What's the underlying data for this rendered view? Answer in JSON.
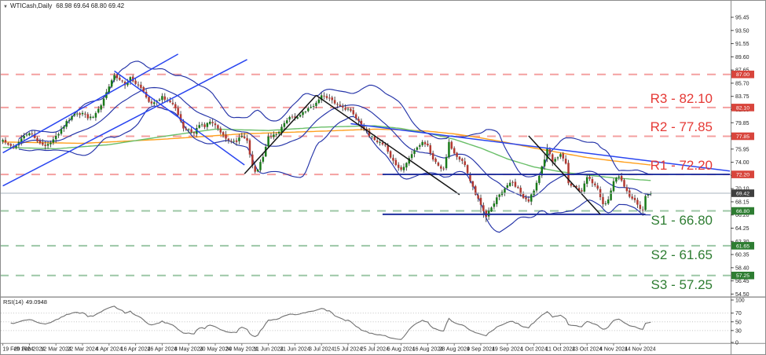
{
  "window": {
    "dropdown_icon": "▼",
    "symbol": "WTICash,Daily",
    "ohlc": "68.98 69.64 68.80 69.42"
  },
  "chart_data": {
    "type": "candlestick",
    "symbol": "WTICash",
    "timeframe": "Daily",
    "bar_count": 245,
    "bars_per_label": 10,
    "time_labels": [
      "19 Feb 2024",
      "29 Feb 2024",
      "12 Mar 2024",
      "22 Mar 2024",
      "4 Apr 2024",
      "16 Apr 2024",
      "26 Apr 2024",
      "8 May 2024",
      "20 May 2024",
      "30 May 2024",
      "11 Jun 2024",
      "21 Jun 2024",
      "3 Jul 2024",
      "15 Jul 2024",
      "25 Jul 2024",
      "6 Aug 2024",
      "16 Aug 2024",
      "28 Aug 2024",
      "9 Sep 2024",
      "19 Sep 2024",
      "1 Oct 2024",
      "11 Oct 2024",
      "23 Oct 2024",
      "4 Nov 2024",
      "14 Nov 2024"
    ],
    "price_axis": {
      "ticks": [
        95.45,
        93.5,
        91.55,
        89.6,
        87.65,
        85.7,
        83.75,
        81.8,
        79.85,
        77.9,
        75.95,
        74.0,
        72.05,
        70.1,
        68.15,
        66.2,
        64.25,
        62.3,
        60.35,
        58.4,
        56.45,
        54.5
      ],
      "top_price": 95.45,
      "tick_step": 1.95
    },
    "close_anchors": [
      [
        0,
        77.3
      ],
      [
        2,
        76.6
      ],
      [
        4,
        76.1
      ],
      [
        6,
        77.0
      ],
      [
        8,
        77.9
      ],
      [
        10,
        78.3
      ],
      [
        12,
        77.6
      ],
      [
        14,
        76.8
      ],
      [
        16,
        76.4
      ],
      [
        18,
        76.9
      ],
      [
        20,
        77.9
      ],
      [
        22,
        78.9
      ],
      [
        24,
        80.1
      ],
      [
        26,
        80.8
      ],
      [
        28,
        81.2
      ],
      [
        30,
        81.3
      ],
      [
        32,
        80.5
      ],
      [
        34,
        80.7
      ],
      [
        36,
        81.9
      ],
      [
        38,
        83.4
      ],
      [
        40,
        85.2
      ],
      [
        42,
        86.9
      ],
      [
        44,
        86.2
      ],
      [
        46,
        85.4
      ],
      [
        48,
        86.6
      ],
      [
        50,
        85.6
      ],
      [
        52,
        85.0
      ],
      [
        54,
        83.6
      ],
      [
        56,
        82.7
      ],
      [
        58,
        83.1
      ],
      [
        60,
        83.8
      ],
      [
        62,
        83.2
      ],
      [
        64,
        82.6
      ],
      [
        66,
        81.0
      ],
      [
        68,
        79.0
      ],
      [
        70,
        78.9
      ],
      [
        72,
        78.3
      ],
      [
        74,
        79.5
      ],
      [
        76,
        79.2
      ],
      [
        78,
        80.0
      ],
      [
        80,
        79.5
      ],
      [
        82,
        78.4
      ],
      [
        84,
        77.5
      ],
      [
        86,
        77.1
      ],
      [
        88,
        77.0
      ],
      [
        90,
        77.9
      ],
      [
        92,
        77.2
      ],
      [
        94,
        73.5
      ],
      [
        95,
        72.6
      ],
      [
        96,
        72.9
      ],
      [
        98,
        74.8
      ],
      [
        100,
        77.8
      ],
      [
        102,
        78.1
      ],
      [
        104,
        78.5
      ],
      [
        106,
        79.8
      ],
      [
        108,
        80.7
      ],
      [
        110,
        80.6
      ],
      [
        112,
        81.0
      ],
      [
        114,
        81.5
      ],
      [
        116,
        82.2
      ],
      [
        118,
        82.8
      ],
      [
        120,
        83.9
      ],
      [
        122,
        83.5
      ],
      [
        124,
        83.2
      ],
      [
        126,
        82.5
      ],
      [
        128,
        82.1
      ],
      [
        130,
        81.9
      ],
      [
        132,
        81.1
      ],
      [
        134,
        80.1
      ],
      [
        136,
        78.9
      ],
      [
        138,
        77.9
      ],
      [
        140,
        77.3
      ],
      [
        142,
        77.0
      ],
      [
        144,
        76.5
      ],
      [
        146,
        74.7
      ],
      [
        148,
        73.6
      ],
      [
        150,
        72.9
      ],
      [
        152,
        73.9
      ],
      [
        154,
        75.2
      ],
      [
        156,
        76.2
      ],
      [
        158,
        77.0
      ],
      [
        160,
        76.5
      ],
      [
        162,
        74.4
      ],
      [
        164,
        73.5
      ],
      [
        166,
        73.0
      ],
      [
        168,
        77.0
      ],
      [
        170,
        75.3
      ],
      [
        172,
        74.4
      ],
      [
        174,
        73.6
      ],
      [
        176,
        71.2
      ],
      [
        178,
        69.2
      ],
      [
        180,
        67.7
      ],
      [
        182,
        65.9
      ],
      [
        183,
        66.8
      ],
      [
        184,
        67.3
      ],
      [
        186,
        68.8
      ],
      [
        188,
        69.6
      ],
      [
        190,
        70.6
      ],
      [
        192,
        71.0
      ],
      [
        194,
        70.2
      ],
      [
        196,
        68.7
      ],
      [
        198,
        68.2
      ],
      [
        200,
        69.8
      ],
      [
        202,
        72.0
      ],
      [
        204,
        74.4
      ],
      [
        205,
        76.0
      ],
      [
        206,
        75.2
      ],
      [
        207,
        74.0
      ],
      [
        210,
        75.2
      ],
      [
        212,
        73.8
      ],
      [
        213,
        70.9
      ],
      [
        216,
        70.3
      ],
      [
        218,
        69.7
      ],
      [
        220,
        71.8
      ],
      [
        222,
        70.9
      ],
      [
        224,
        70.1
      ],
      [
        226,
        67.8
      ],
      [
        228,
        68.5
      ],
      [
        230,
        71.2
      ],
      [
        232,
        71.9
      ],
      [
        234,
        70.4
      ],
      [
        236,
        68.9
      ],
      [
        238,
        68.4
      ],
      [
        240,
        67.1
      ],
      [
        241,
        66.9
      ],
      [
        242,
        69.0
      ],
      [
        243,
        69.2
      ],
      [
        244,
        69.42
      ]
    ],
    "indicators": {
      "bollinger": {
        "period": 20,
        "deviation": 2.1
      },
      "ma_green_anchors": [
        [
          0,
          76.2
        ],
        [
          20,
          76.0
        ],
        [
          40,
          76.6
        ],
        [
          60,
          77.8
        ],
        [
          80,
          78.9
        ],
        [
          100,
          78.7
        ],
        [
          120,
          79.2
        ],
        [
          140,
          79.4
        ],
        [
          150,
          79.0
        ],
        [
          160,
          78.3
        ],
        [
          170,
          77.4
        ],
        [
          180,
          76.1
        ],
        [
          190,
          74.5
        ],
        [
          200,
          73.3
        ],
        [
          210,
          72.6
        ],
        [
          220,
          72.1
        ],
        [
          230,
          71.7
        ],
        [
          244,
          71.3
        ]
      ],
      "ma_orange_anchors": [
        [
          0,
          77.0
        ],
        [
          30,
          76.8
        ],
        [
          60,
          77.4
        ],
        [
          90,
          78.2
        ],
        [
          120,
          78.6
        ],
        [
          140,
          78.9
        ],
        [
          150,
          78.8
        ],
        [
          160,
          78.6
        ],
        [
          170,
          78.2
        ],
        [
          180,
          77.6
        ],
        [
          190,
          76.9
        ],
        [
          200,
          76.1
        ],
        [
          210,
          75.4
        ],
        [
          220,
          74.7
        ],
        [
          230,
          74.2
        ],
        [
          244,
          73.6
        ]
      ]
    },
    "levels": {
      "resistance": [
        {
          "label": "",
          "price": 87.0
        },
        {
          "label": "R3 - 82.10",
          "price": 82.1
        },
        {
          "label": "R2 - 77.85",
          "price": 77.85
        },
        {
          "label": "R1 - 72.20",
          "price": 72.2
        }
      ],
      "support": [
        {
          "label": "S1 - 66.80",
          "price": 66.8
        },
        {
          "label": "S2 - 61.65",
          "price": 61.65
        },
        {
          "label": "S3 - 57.25",
          "price": 57.25
        }
      ]
    },
    "current_price": {
      "text": "69.42",
      "price": 69.42
    },
    "badges": [
      {
        "text": "87.00",
        "price": 87.0,
        "kind": "res"
      },
      {
        "text": "82.10",
        "price": 82.1,
        "kind": "res"
      },
      {
        "text": "77.85",
        "price": 77.85,
        "kind": "res"
      },
      {
        "text": "72.20",
        "price": 72.2,
        "kind": "res"
      },
      {
        "text": "69.42",
        "price": 69.42,
        "kind": "cur"
      },
      {
        "text": "66.80",
        "price": 66.8,
        "kind": "sup"
      },
      {
        "text": "61.65",
        "price": 61.65,
        "kind": "sup"
      },
      {
        "text": "57.25",
        "price": 57.25,
        "kind": "sup"
      }
    ],
    "trendlines": {
      "blue": [
        [
          [
            0,
            75.4
          ],
          [
            66,
            90.0
          ]
        ],
        [
          [
            0,
            70.5
          ],
          [
            92,
            89.2
          ]
        ],
        [
          [
            42,
            87.5
          ],
          [
            91,
            73.6
          ]
        ],
        [
          [
            131,
            79.7
          ],
          [
            274,
            72.7
          ]
        ]
      ],
      "black": [
        [
          [
            91,
            72.3
          ],
          [
            118,
            83.9
          ]
        ],
        [
          [
            118,
            83.9
          ],
          [
            172,
            69.2
          ]
        ],
        [
          [
            198,
            77.9
          ],
          [
            225,
            66.3
          ]
        ]
      ],
      "navy_horizontal": [
        {
          "price": 72.2,
          "from": 143,
          "to": 274
        },
        {
          "price": 66.3,
          "from": 143,
          "to": 242
        }
      ]
    },
    "rsi": {
      "name": "RSI(14)",
      "value": "49.0948",
      "period": 14,
      "levels": [
        70,
        50,
        30
      ],
      "axis_labels": [
        100,
        70,
        50,
        30,
        0
      ],
      "range": [
        0,
        100
      ]
    }
  },
  "style": {
    "up": "#1a7a1a",
    "down": "#b23a32",
    "wick": "#3c3c3c",
    "boll": "#2433a8",
    "ma_green": "#6abf69",
    "ma_orange": "#ffa01e",
    "trend_blue": "#2945f0",
    "trend_black": "#151515",
    "navy": "#1f2f9e",
    "res_line": "#f4a0a0",
    "res_text": "#e53935",
    "sup_line": "#9cc7a6",
    "sup_text": "#2e7d32",
    "cur_line": "#aab4bf",
    "badge_res": "#d8453c",
    "badge_sup": "#2e7d32",
    "badge_cur": "#3f3f3f",
    "rsi_line": "#707070",
    "rsi_dot": "#c4c4c4",
    "axis_text": "#222222",
    "frame": "#8c8c8c"
  }
}
